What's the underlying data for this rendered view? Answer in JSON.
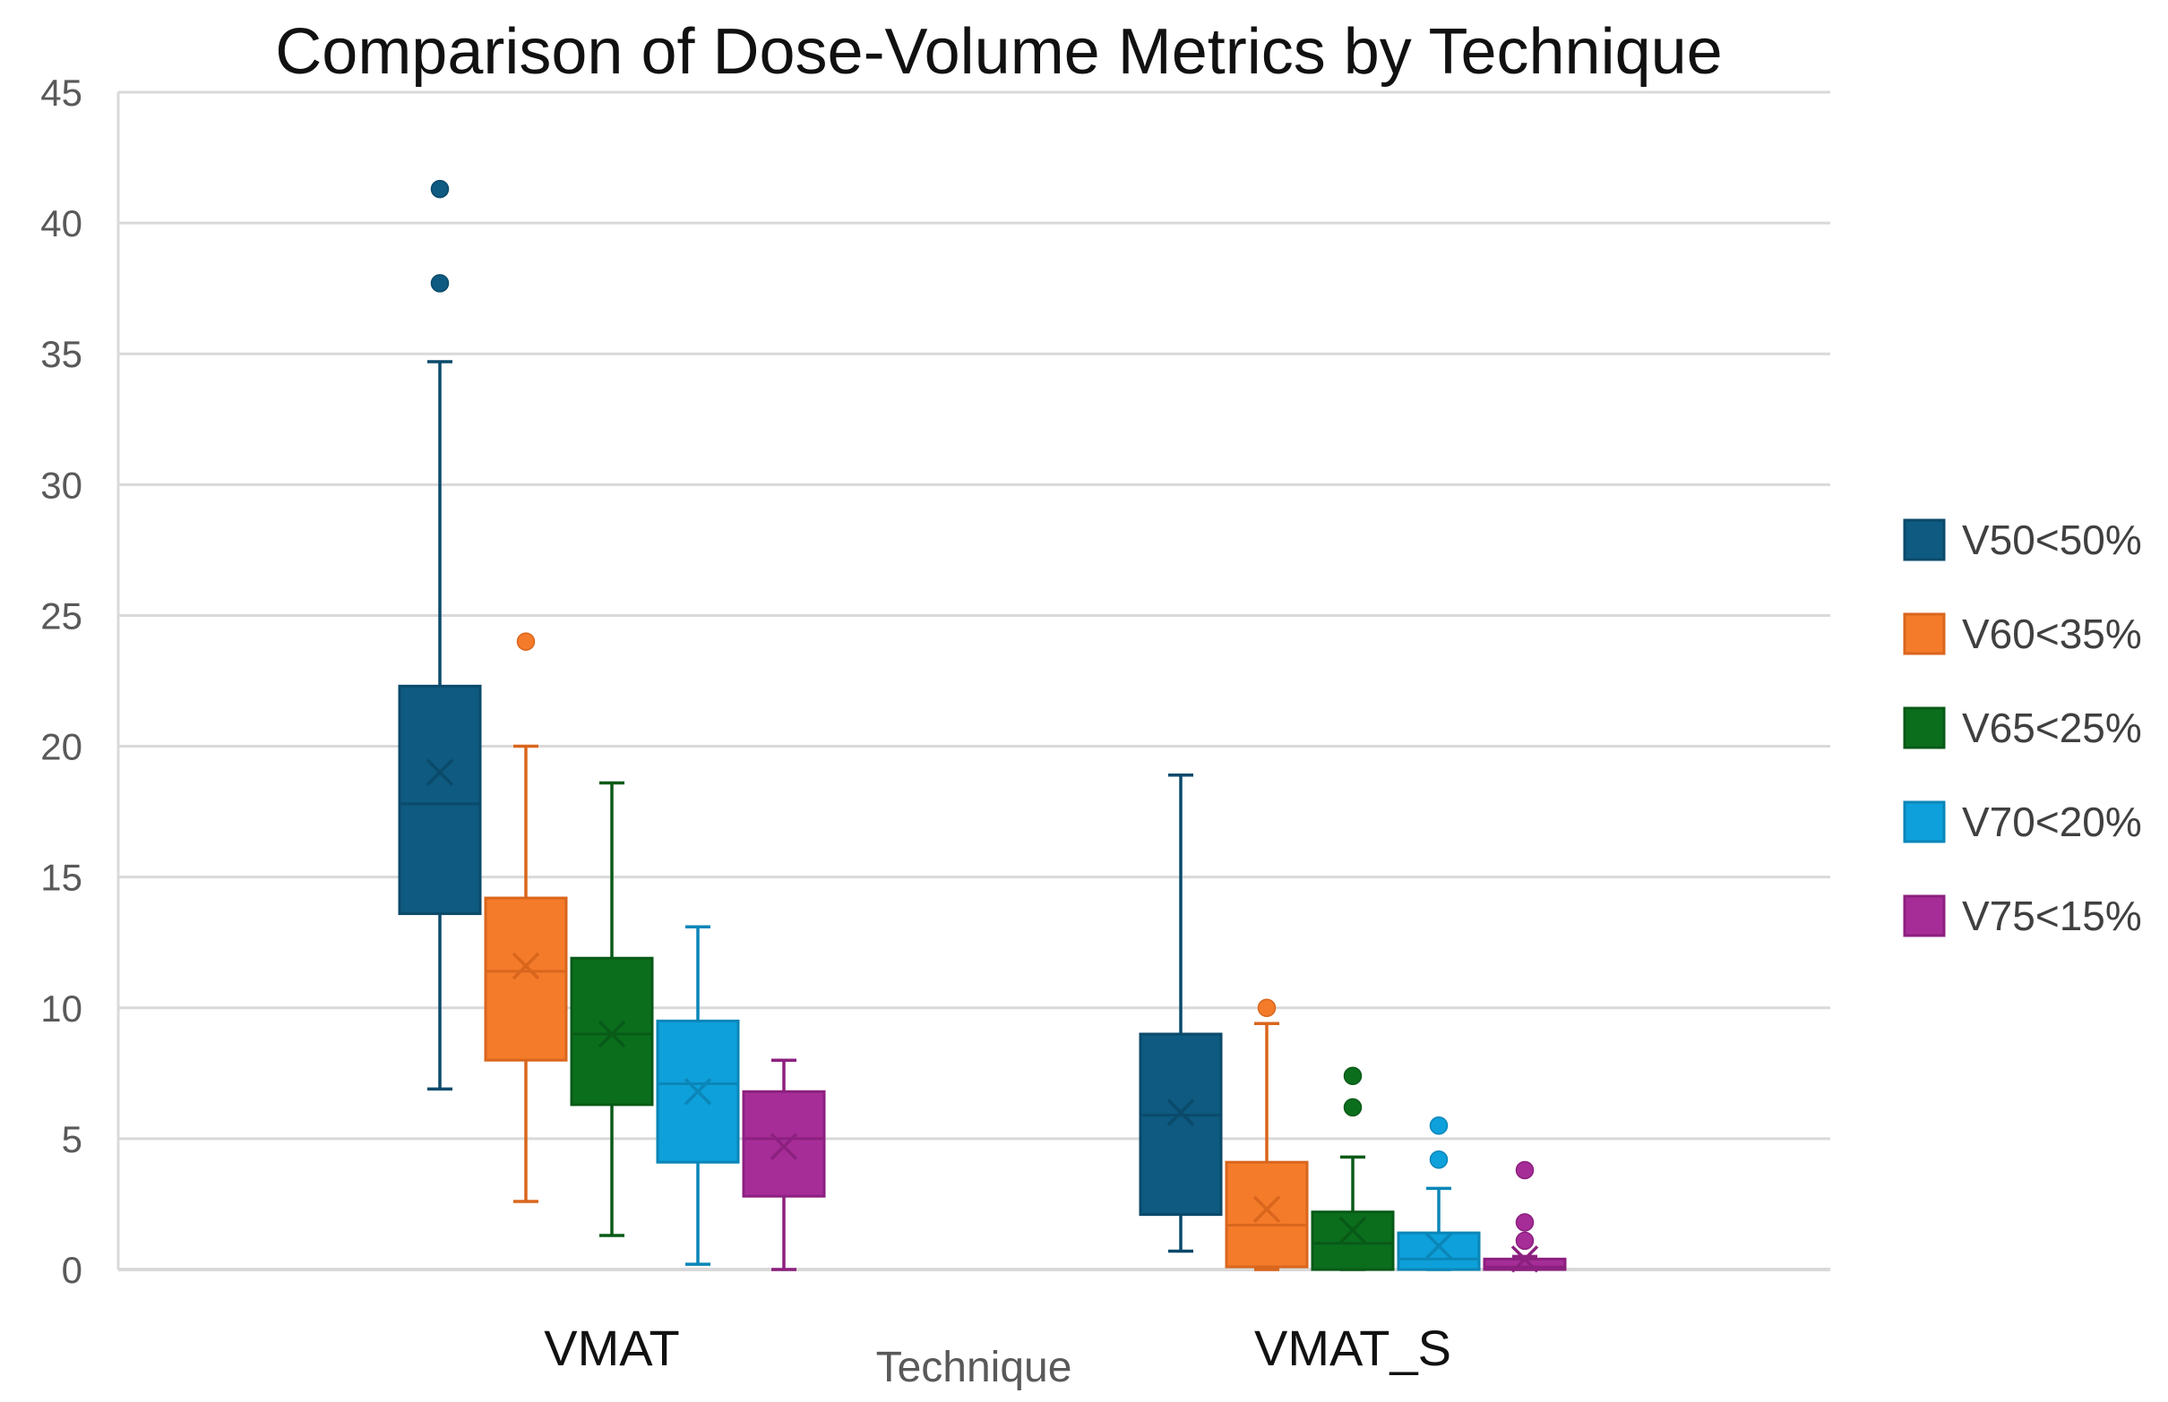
{
  "chart_data": {
    "type": "box",
    "title": "Comparison of Dose-Volume Metrics by Technique",
    "xlabel": "Technique",
    "ylabel": "",
    "ylim": [
      0,
      45
    ],
    "yticks": [
      0,
      5,
      10,
      15,
      20,
      25,
      30,
      35,
      40,
      45
    ],
    "grid": true,
    "legend_position": "right",
    "categories": [
      "VMAT",
      "VMAT_S"
    ],
    "series": [
      {
        "name": "V50<50%",
        "color": "#0E5A80",
        "stroke": "#0B4A6B",
        "boxes": [
          {
            "min": 6.9,
            "q1": 13.6,
            "median": 17.8,
            "q3": 22.3,
            "max": 34.7,
            "mean": 19.0,
            "outliers": [
              37.7,
              41.3
            ]
          },
          {
            "min": 0.7,
            "q1": 2.1,
            "median": 5.9,
            "q3": 9.0,
            "max": 18.9,
            "mean": 6.0,
            "outliers": []
          }
        ]
      },
      {
        "name": "V60<35%",
        "color": "#F47B2A",
        "stroke": "#D9661D",
        "boxes": [
          {
            "min": 2.6,
            "q1": 8.0,
            "median": 11.4,
            "q3": 14.2,
            "max": 20.0,
            "mean": 11.6,
            "outliers": [
              24.0
            ]
          },
          {
            "min": 0.0,
            "q1": 0.1,
            "median": 1.7,
            "q3": 4.1,
            "max": 9.4,
            "mean": 2.3,
            "outliers": [
              10.0
            ]
          }
        ]
      },
      {
        "name": "V65<25%",
        "color": "#0B6E1D",
        "stroke": "#085A17",
        "boxes": [
          {
            "min": 1.3,
            "q1": 6.3,
            "median": 9.0,
            "q3": 11.9,
            "max": 18.6,
            "mean": 9.0,
            "outliers": []
          },
          {
            "min": 0.0,
            "q1": 0.0,
            "median": 1.0,
            "q3": 2.2,
            "max": 4.3,
            "mean": 1.5,
            "outliers": [
              6.2,
              7.4
            ]
          }
        ]
      },
      {
        "name": "V70<20%",
        "color": "#0EA0DA",
        "stroke": "#0B86B8",
        "boxes": [
          {
            "min": 0.2,
            "q1": 4.1,
            "median": 7.1,
            "q3": 9.5,
            "max": 13.1,
            "mean": 6.8,
            "outliers": []
          },
          {
            "min": 0.0,
            "q1": 0.0,
            "median": 0.4,
            "q3": 1.4,
            "max": 3.1,
            "mean": 0.9,
            "outliers": [
              4.2,
              5.5
            ]
          }
        ]
      },
      {
        "name": "V75<15%",
        "color": "#A62D98",
        "stroke": "#8C207F",
        "boxes": [
          {
            "min": 0.0,
            "q1": 2.8,
            "median": 5.0,
            "q3": 6.8,
            "max": 8.0,
            "mean": 4.7,
            "outliers": []
          },
          {
            "min": 0.0,
            "q1": 0.0,
            "median": 0.1,
            "q3": 0.4,
            "max": 0.5,
            "mean": 0.4,
            "outliers": [
              1.1,
              1.8,
              3.8
            ]
          }
        ]
      }
    ]
  }
}
